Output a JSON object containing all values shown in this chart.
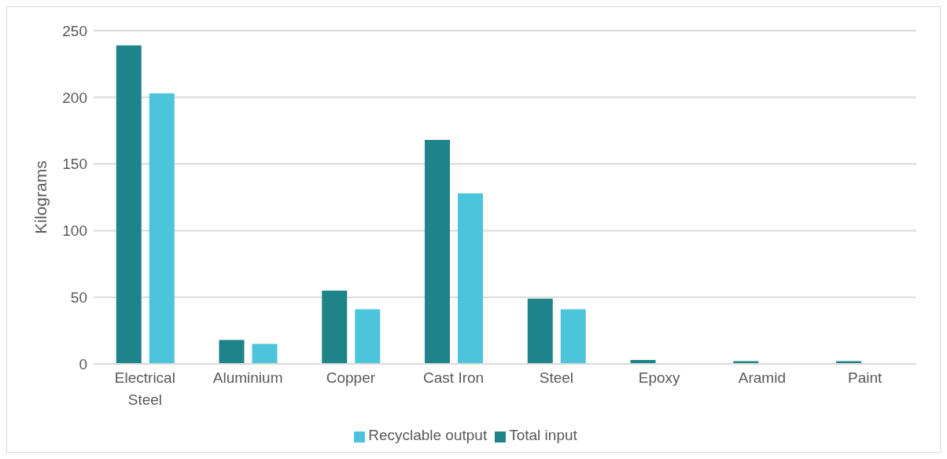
{
  "chart_data": {
    "type": "bar",
    "ylabel": "Kilograms",
    "categories": [
      "Electrical Steel",
      "Aluminium",
      "Copper",
      "Cast Iron",
      "Steel",
      "Epoxy",
      "Aramid",
      "Paint"
    ],
    "series": [
      {
        "name": "Total input",
        "color": "#1e8489",
        "values": [
          239,
          18,
          55,
          168,
          49,
          3,
          2,
          2
        ]
      },
      {
        "name": "Recyclable output",
        "color": "#4bc4dc",
        "values": [
          203,
          15,
          41,
          128,
          41,
          0,
          0,
          0
        ]
      }
    ],
    "ylim": [
      0,
      250
    ],
    "yticks": [
      0,
      50,
      100,
      150,
      200,
      250
    ],
    "grid": "y",
    "legend": "bottom"
  }
}
